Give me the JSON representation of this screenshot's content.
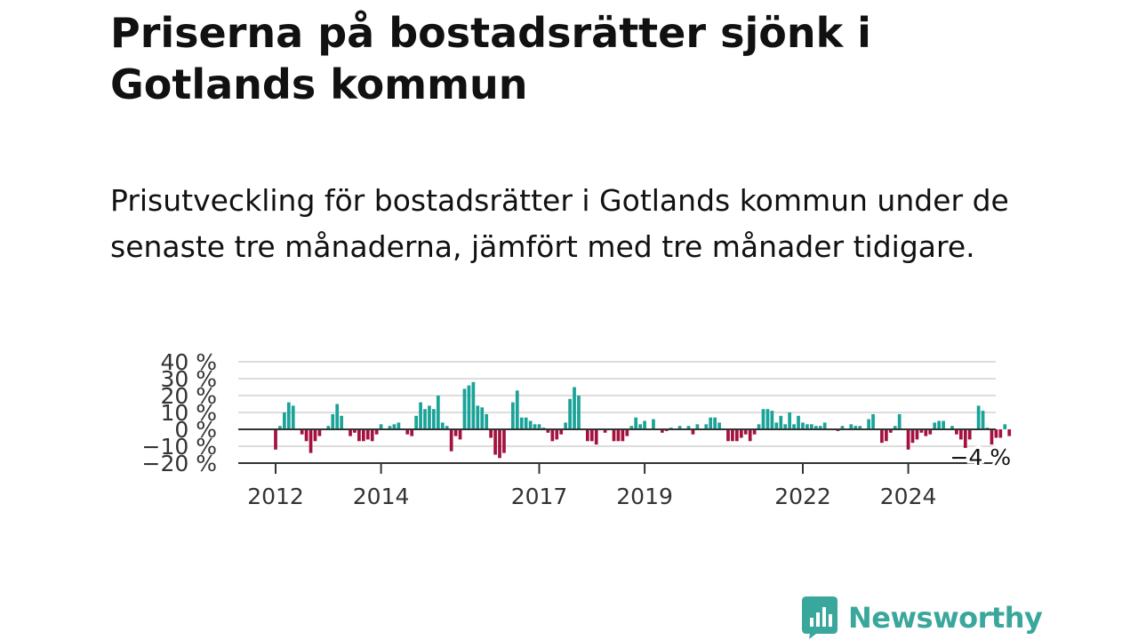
{
  "header": {
    "title": "Priserna på bostadsrätter sjönk i Gotlands kommun",
    "subtitle": "Prisutveckling för bostadsrätter i Gotlands kommun under de senaste tre månaderna, jämfört med tre månader tidigare."
  },
  "brand": {
    "name": "Newsworthy",
    "icon": "newsworthy-logo-icon"
  },
  "colors": {
    "positive": "#1aa398",
    "negative": "#a3123f",
    "zero_line": "#333333",
    "grid": "#dddddd",
    "brand": "#3aa79c"
  },
  "chart_data": {
    "type": "bar",
    "title": "",
    "xlabel": "",
    "ylabel": "",
    "ylim": [
      -20,
      40
    ],
    "y_ticks": [
      {
        "value": 40,
        "label": "40 %"
      },
      {
        "value": 30,
        "label": "30 %"
      },
      {
        "value": 20,
        "label": "20 %"
      },
      {
        "value": 10,
        "label": "10 %"
      },
      {
        "value": 0,
        "label": "0 %"
      },
      {
        "value": -10,
        "label": "−10 %"
      },
      {
        "value": -20,
        "label": "−20 %"
      }
    ],
    "x_ticks": [
      {
        "x": 2012.0,
        "label": "2012"
      },
      {
        "x": 2014.0,
        "label": "2014"
      },
      {
        "x": 2017.0,
        "label": "2017"
      },
      {
        "x": 2019.0,
        "label": "2019"
      },
      {
        "x": 2022.0,
        "label": "2022"
      },
      {
        "x": 2024.0,
        "label": "2024"
      }
    ],
    "grid": true,
    "x_start": 2012.0,
    "step": 0.08333,
    "values": [
      -12,
      2,
      10,
      16,
      14,
      0,
      -3,
      -7,
      -14,
      -7,
      -4,
      0,
      2,
      9,
      15,
      8,
      0,
      -4,
      -2,
      -7,
      -7,
      -6,
      -7,
      -3,
      3,
      0,
      2,
      3,
      4,
      0,
      -3,
      -4,
      8,
      16,
      12,
      14,
      12,
      20,
      4,
      2,
      -13,
      -4,
      -6,
      24,
      26,
      28,
      14,
      13,
      9,
      -5,
      -15,
      -17,
      -14,
      0,
      16,
      23,
      7,
      7,
      5,
      3,
      3,
      1,
      -2,
      -7,
      -6,
      -3,
      4,
      18,
      25,
      20,
      0,
      -7,
      -7,
      -9,
      0,
      -2,
      0,
      -7,
      -7,
      -7,
      -4,
      2,
      7,
      3,
      5,
      0,
      6,
      0,
      -2,
      -1,
      1,
      0,
      2,
      0,
      2,
      -3,
      3,
      0,
      3,
      7,
      7,
      4,
      0,
      -7,
      -7,
      -7,
      -5,
      -3,
      -7,
      -3,
      3,
      12,
      12,
      11,
      4,
      8,
      3,
      10,
      3,
      8,
      4,
      3,
      3,
      2,
      2,
      4,
      0,
      0,
      -1,
      2,
      0,
      3,
      2,
      2,
      0,
      6,
      9,
      0,
      -8,
      -7,
      -2,
      2,
      9,
      0,
      -12,
      -8,
      -6,
      -2,
      -4,
      -3,
      4,
      5,
      5,
      0,
      2,
      -3,
      -6,
      -11,
      -6,
      0,
      14,
      11,
      1,
      -9,
      -5,
      -5,
      3,
      -4
    ],
    "annotations": [
      {
        "x": 2024.83,
        "value": -4,
        "label": "−4 %"
      }
    ]
  }
}
